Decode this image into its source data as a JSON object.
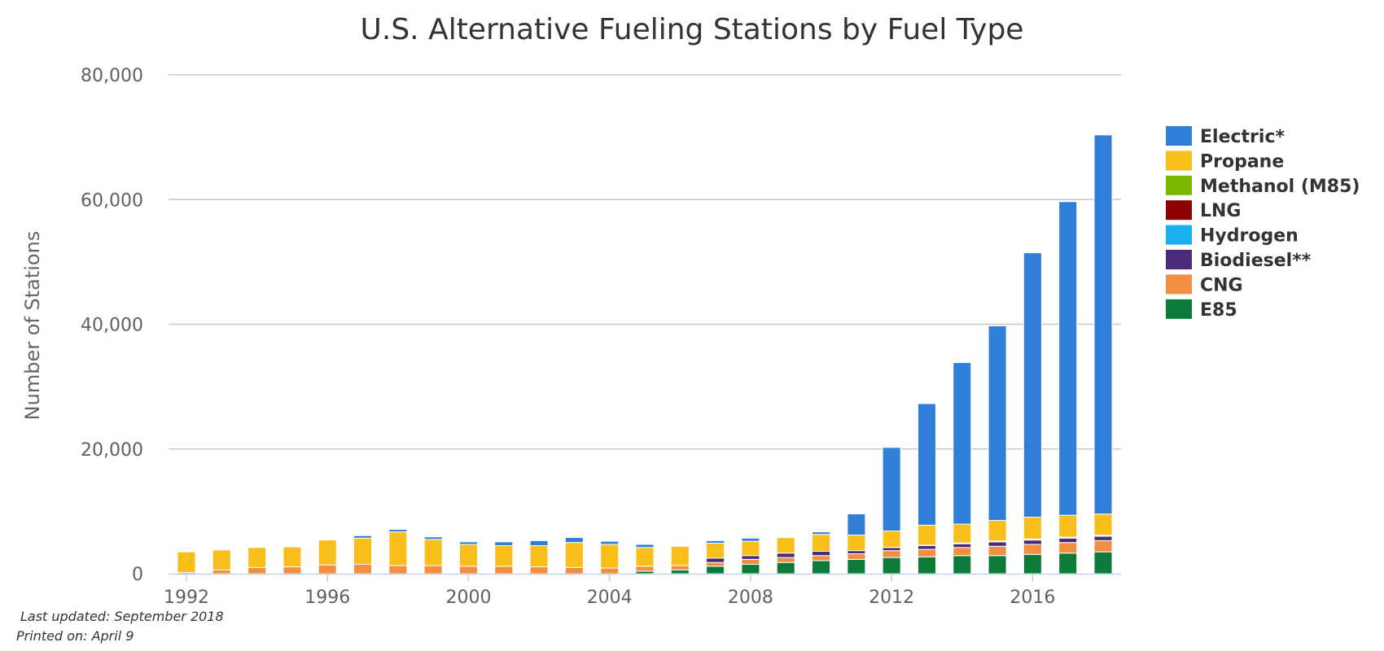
{
  "chart_data": {
    "type": "bar",
    "stacked": true,
    "title": "U.S. Alternative Fueling Stations by Fuel Type",
    "ylabel": "Number of Stations",
    "xlabel": "",
    "ylim": [
      0,
      80000
    ],
    "yticks": [
      0,
      20000,
      40000,
      60000,
      80000
    ],
    "ytick_labels": [
      "0",
      "20,000",
      "40,000",
      "60,000",
      "80,000"
    ],
    "xtick_labels": [
      "1992",
      "1996",
      "2000",
      "2004",
      "2008",
      "2012",
      "2016"
    ],
    "grid": true,
    "legend_position": "right",
    "categories": [
      "1992",
      "1993",
      "1994",
      "1995",
      "1996",
      "1997",
      "1998",
      "1999",
      "2000",
      "2001",
      "2002",
      "2003",
      "2004",
      "2005",
      "2006",
      "2007",
      "2008",
      "2009",
      "2010",
      "2011",
      "2012",
      "2013",
      "2014",
      "2015",
      "2016",
      "2017",
      "2018"
    ],
    "series": [
      {
        "name": "E85",
        "color": "#0d7a3a",
        "values": [
          0,
          0,
          0,
          0,
          0,
          0,
          0,
          0,
          0,
          0,
          0,
          0,
          0,
          400,
          600,
          1200,
          1500,
          1800,
          2100,
          2300,
          2600,
          2700,
          2900,
          2900,
          3100,
          3300,
          3500
        ]
      },
      {
        "name": "CNG",
        "color": "#f28e3f",
        "values": [
          200,
          600,
          1000,
          1100,
          1400,
          1500,
          1300,
          1300,
          1200,
          1200,
          1100,
          1000,
          900,
          800,
          700,
          600,
          800,
          800,
          800,
          900,
          1100,
          1200,
          1300,
          1500,
          1600,
          1700,
          1800
        ]
      },
      {
        "name": "Biodiesel**",
        "color": "#4a2a7a",
        "values": [
          0,
          0,
          0,
          0,
          0,
          0,
          0,
          0,
          0,
          0,
          0,
          0,
          0,
          0,
          0,
          700,
          600,
          700,
          700,
          500,
          500,
          600,
          600,
          700,
          700,
          700,
          700
        ]
      },
      {
        "name": "Hydrogen",
        "color": "#1ab0ee",
        "values": [
          0,
          0,
          0,
          0,
          0,
          0,
          0,
          0,
          0,
          0,
          0,
          0,
          0,
          0,
          0,
          0,
          0,
          0,
          0,
          0,
          0,
          0,
          50,
          50,
          60,
          60,
          60
        ]
      },
      {
        "name": "LNG",
        "color": "#8b0000",
        "values": [
          0,
          0,
          0,
          0,
          0,
          0,
          0,
          0,
          0,
          0,
          0,
          0,
          0,
          0,
          0,
          0,
          0,
          0,
          0,
          0,
          50,
          80,
          100,
          100,
          110,
          110,
          110
        ]
      },
      {
        "name": "Methanol (M85)",
        "color": "#7ab800",
        "values": [
          0,
          0,
          0,
          0,
          0,
          0,
          0,
          0,
          0,
          0,
          0,
          0,
          0,
          0,
          0,
          0,
          0,
          0,
          0,
          0,
          0,
          0,
          0,
          0,
          0,
          0,
          0
        ]
      },
      {
        "name": "Propane",
        "color": "#f8bf1a",
        "values": [
          3300,
          3200,
          3200,
          3200,
          4000,
          4200,
          5400,
          4200,
          3500,
          3300,
          3400,
          4000,
          3800,
          3000,
          3100,
          2400,
          2300,
          2500,
          2700,
          2500,
          2600,
          3200,
          3000,
          3300,
          3500,
          3500,
          3400
        ]
      },
      {
        "name": "Electric*",
        "color": "#2f7ed8",
        "values": [
          0,
          0,
          0,
          0,
          0,
          400,
          400,
          400,
          400,
          600,
          800,
          800,
          500,
          500,
          0,
          400,
          500,
          100,
          400,
          3400,
          13400,
          19500,
          25900,
          31200,
          42400,
          50300,
          60800
        ]
      }
    ],
    "legend_order": [
      "Electric*",
      "Propane",
      "Methanol (M85)",
      "LNG",
      "Hydrogen",
      "Biodiesel**",
      "CNG",
      "E85"
    ]
  },
  "footer": {
    "last_updated": "Last updated: September 2018",
    "printed_on": "Printed on: April 9"
  }
}
